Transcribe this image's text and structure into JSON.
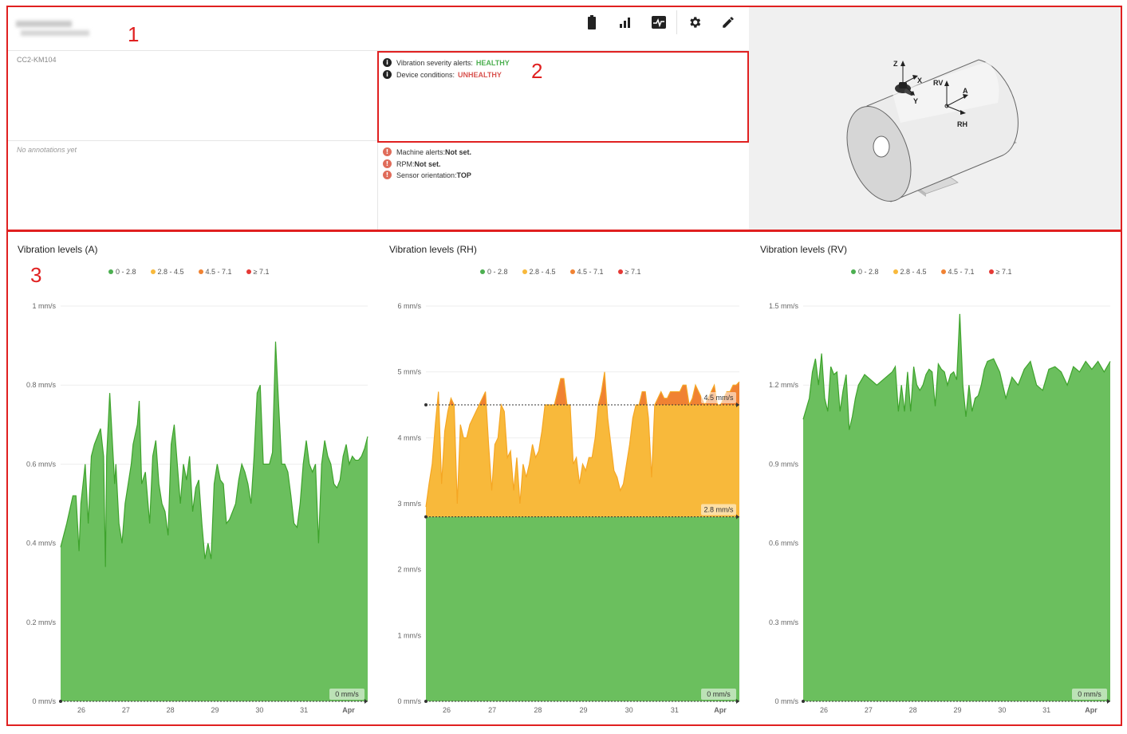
{
  "header": {
    "model": "CC2-KM104",
    "annotations_text": "No annotations yet",
    "toolbar": [
      {
        "name": "battery-icon"
      },
      {
        "name": "signal-icon"
      },
      {
        "name": "waveform-icon"
      },
      {
        "name": "gear-icon"
      },
      {
        "name": "pencil-icon"
      }
    ]
  },
  "status": {
    "vibration_label": "Vibration severity alerts:",
    "vibration_value": "HEALTHY",
    "device_label": "Device conditions:",
    "device_value": "UNHEALTHY",
    "machine_alerts_label": "Machine alerts:",
    "machine_alerts_value": "Not set.",
    "rpm_label": "RPM:",
    "rpm_value": "Not set.",
    "orientation_label": "Sensor orientation:",
    "orientation_value": "TOP"
  },
  "diagram": {
    "labels": [
      "Z",
      "X",
      "Y",
      "RV",
      "A",
      "RH"
    ]
  },
  "annotation_markers": {
    "one": "1",
    "two": "2",
    "three": "3"
  },
  "colors": {
    "green": "#4caf50",
    "green_fill": "#6bbf5e",
    "yellow": "#f8b93b",
    "orange": "#f08232",
    "red": "#e53935",
    "marker_red": "#e02020"
  },
  "legend": [
    {
      "label": "0 - 2.8",
      "color": "#4caf50"
    },
    {
      "label": "2.8 - 4.5",
      "color": "#f8b93b"
    },
    {
      "label": "4.5 - 7.1",
      "color": "#f08232"
    },
    {
      "label": "≥ 7.1",
      "color": "#e53935"
    }
  ],
  "chart_data": [
    {
      "type": "area",
      "title": "Vibration levels (A)",
      "unit": "mm/s",
      "ylim": [
        0,
        1
      ],
      "yticks": [
        "0 mm/s",
        "0.2 mm/s",
        "0.4 mm/s",
        "0.6 mm/s",
        "0.8 mm/s",
        "1 mm/s"
      ],
      "xticks": [
        "26",
        "27",
        "28",
        "29",
        "30",
        "31",
        "Apr"
      ],
      "thresholds": [
        {
          "value": 0,
          "label": "0 mm/s"
        }
      ],
      "x": [
        0,
        0.01,
        0.02,
        0.025,
        0.03,
        0.033,
        0.04,
        0.045,
        0.05,
        0.055,
        0.065,
        0.07,
        0.073,
        0.075,
        0.08,
        0.088,
        0.09,
        0.095,
        0.1,
        0.105,
        0.11,
        0.115,
        0.118,
        0.125,
        0.128,
        0.132,
        0.138,
        0.145,
        0.15,
        0.155,
        0.16,
        0.165,
        0.17,
        0.175,
        0.18,
        0.185,
        0.19,
        0.195,
        0.2,
        0.205,
        0.21,
        0.215,
        0.22,
        0.225,
        0.23,
        0.235,
        0.24,
        0.245,
        0.25,
        0.255,
        0.26,
        0.265,
        0.27,
        0.275,
        0.28,
        0.285,
        0.29,
        0.295,
        0.3,
        0.305,
        0.31,
        0.315,
        0.32,
        0.325,
        0.33,
        0.335,
        0.34,
        0.345,
        0.35,
        0.355,
        0.36,
        0.365,
        0.37,
        0.375,
        0.38,
        0.385,
        0.39,
        0.395,
        0.4,
        0.405,
        0.41,
        0.415,
        0.42,
        0.425,
        0.43,
        0.435,
        0.44,
        0.445,
        0.45,
        0.455,
        0.46,
        0.465,
        0.47,
        0.475,
        0.48,
        0.485,
        0.49,
        0.495,
        0.5
      ],
      "values": [
        0.39,
        0.45,
        0.52,
        0.52,
        0.38,
        0.5,
        0.6,
        0.45,
        0.62,
        0.65,
        0.69,
        0.62,
        0.34,
        0.62,
        0.78,
        0.55,
        0.6,
        0.45,
        0.4,
        0.5,
        0.55,
        0.6,
        0.65,
        0.7,
        0.76,
        0.55,
        0.58,
        0.45,
        0.62,
        0.66,
        0.55,
        0.5,
        0.48,
        0.42,
        0.65,
        0.7,
        0.6,
        0.5,
        0.6,
        0.56,
        0.62,
        0.48,
        0.54,
        0.56,
        0.45,
        0.36,
        0.4,
        0.36,
        0.55,
        0.6,
        0.56,
        0.55,
        0.45,
        0.46,
        0.48,
        0.5,
        0.56,
        0.6,
        0.58,
        0.55,
        0.5,
        0.62,
        0.78,
        0.8,
        0.6,
        0.6,
        0.6,
        0.63,
        0.91,
        0.75,
        0.6,
        0.6,
        0.58,
        0.52,
        0.45,
        0.44,
        0.5,
        0.6,
        0.66,
        0.6,
        0.58,
        0.6,
        0.4,
        0.6,
        0.66,
        0.62,
        0.6,
        0.55,
        0.54,
        0.56,
        0.62,
        0.65,
        0.6,
        0.62,
        0.61,
        0.61,
        0.62,
        0.64,
        0.67
      ]
    },
    {
      "type": "area",
      "title": "Vibration levels (RH)",
      "unit": "mm/s",
      "ylim": [
        0,
        6
      ],
      "yticks": [
        "0 mm/s",
        "1 mm/s",
        "2 mm/s",
        "3 mm/s",
        "4 mm/s",
        "5 mm/s",
        "6 mm/s"
      ],
      "xticks": [
        "26",
        "27",
        "28",
        "29",
        "30",
        "31",
        "Apr"
      ],
      "thresholds": [
        {
          "value": 0,
          "label": "0 mm/s"
        },
        {
          "value": 2.8,
          "label": "2.8 mm/s"
        },
        {
          "value": 4.5,
          "label": "4.5 mm/s"
        }
      ],
      "x": [
        0,
        0.005,
        0.01,
        0.015,
        0.02,
        0.025,
        0.03,
        0.035,
        0.04,
        0.045,
        0.05,
        0.055,
        0.06,
        0.065,
        0.07,
        0.075,
        0.08,
        0.085,
        0.09,
        0.095,
        0.1,
        0.105,
        0.11,
        0.115,
        0.12,
        0.125,
        0.13,
        0.135,
        0.14,
        0.145,
        0.15,
        0.155,
        0.16,
        0.165,
        0.17,
        0.175,
        0.18,
        0.185,
        0.19,
        0.195,
        0.2,
        0.205,
        0.21,
        0.215,
        0.22,
        0.225,
        0.23,
        0.235,
        0.24,
        0.245,
        0.25,
        0.255,
        0.26,
        0.265,
        0.27,
        0.275,
        0.28,
        0.285,
        0.29,
        0.295,
        0.3,
        0.305,
        0.31,
        0.315,
        0.32,
        0.325,
        0.33,
        0.335,
        0.34,
        0.345,
        0.35,
        0.355,
        0.36,
        0.365,
        0.37,
        0.375,
        0.38,
        0.385,
        0.39,
        0.395,
        0.4,
        0.405,
        0.41,
        0.415,
        0.42,
        0.425,
        0.43,
        0.435,
        0.44,
        0.445,
        0.45,
        0.455,
        0.46,
        0.465,
        0.47,
        0.475,
        0.48,
        0.485,
        0.49,
        0.495,
        0.5
      ],
      "values": [
        2.95,
        3.3,
        3.6,
        4.2,
        4.7,
        3.3,
        4.1,
        4.4,
        4.6,
        4.5,
        3.0,
        4.2,
        4.0,
        4.0,
        4.2,
        4.3,
        4.4,
        4.5,
        4.6,
        4.7,
        3.9,
        3.2,
        3.9,
        4.0,
        4.5,
        4.4,
        3.7,
        3.8,
        3.2,
        3.7,
        3.0,
        3.6,
        3.4,
        3.6,
        3.9,
        3.7,
        3.8,
        4.1,
        4.5,
        4.5,
        4.5,
        4.5,
        4.7,
        4.9,
        4.9,
        4.5,
        4.5,
        3.6,
        3.7,
        3.3,
        3.6,
        3.5,
        3.7,
        3.7,
        4.0,
        4.5,
        4.7,
        5.0,
        4.3,
        3.9,
        3.5,
        3.4,
        3.2,
        3.3,
        3.6,
        3.9,
        4.3,
        4.5,
        4.5,
        4.7,
        4.7,
        4.3,
        3.4,
        4.5,
        4.6,
        4.7,
        4.6,
        4.6,
        4.7,
        4.7,
        4.7,
        4.7,
        4.8,
        4.8,
        4.5,
        4.6,
        4.8,
        4.7,
        4.6,
        4.5,
        4.6,
        4.7,
        4.8,
        4.5,
        4.5,
        4.6,
        4.7,
        4.7,
        4.8,
        4.8,
        4.85
      ]
    },
    {
      "type": "area",
      "title": "Vibration levels (RV)",
      "unit": "mm/s",
      "ylim": [
        0,
        1.5
      ],
      "yticks": [
        "0 mm/s",
        "0.3 mm/s",
        "0.6 mm/s",
        "0.9 mm/s",
        "1.2 mm/s",
        "1.5 mm/s"
      ],
      "xticks": [
        "26",
        "27",
        "28",
        "29",
        "30",
        "31",
        "Apr"
      ],
      "thresholds": [
        {
          "value": 0,
          "label": "0 mm/s"
        }
      ],
      "x": [
        0,
        0.01,
        0.015,
        0.02,
        0.025,
        0.03,
        0.035,
        0.04,
        0.045,
        0.05,
        0.055,
        0.06,
        0.065,
        0.07,
        0.075,
        0.08,
        0.085,
        0.09,
        0.095,
        0.1,
        0.12,
        0.14,
        0.145,
        0.15,
        0.155,
        0.16,
        0.165,
        0.17,
        0.175,
        0.18,
        0.185,
        0.19,
        0.195,
        0.2,
        0.205,
        0.21,
        0.215,
        0.22,
        0.225,
        0.23,
        0.235,
        0.24,
        0.245,
        0.25,
        0.255,
        0.26,
        0.265,
        0.27,
        0.275,
        0.28,
        0.285,
        0.29,
        0.295,
        0.3,
        0.31,
        0.32,
        0.33,
        0.34,
        0.35,
        0.36,
        0.37,
        0.38,
        0.39,
        0.4,
        0.41,
        0.42,
        0.43,
        0.44,
        0.45,
        0.46,
        0.47,
        0.48,
        0.49,
        0.5
      ],
      "values": [
        1.07,
        1.15,
        1.25,
        1.3,
        1.2,
        1.32,
        1.15,
        1.1,
        1.27,
        1.24,
        1.25,
        1.1,
        1.18,
        1.24,
        1.03,
        1.08,
        1.15,
        1.2,
        1.22,
        1.24,
        1.2,
        1.24,
        1.25,
        1.27,
        1.1,
        1.2,
        1.1,
        1.25,
        1.1,
        1.27,
        1.2,
        1.18,
        1.2,
        1.24,
        1.26,
        1.25,
        1.12,
        1.28,
        1.26,
        1.25,
        1.2,
        1.24,
        1.25,
        1.22,
        1.47,
        1.2,
        1.08,
        1.2,
        1.1,
        1.15,
        1.16,
        1.2,
        1.26,
        1.29,
        1.3,
        1.25,
        1.15,
        1.23,
        1.2,
        1.26,
        1.29,
        1.2,
        1.18,
        1.26,
        1.27,
        1.25,
        1.2,
        1.27,
        1.25,
        1.29,
        1.26,
        1.29,
        1.25,
        1.29
      ]
    }
  ]
}
